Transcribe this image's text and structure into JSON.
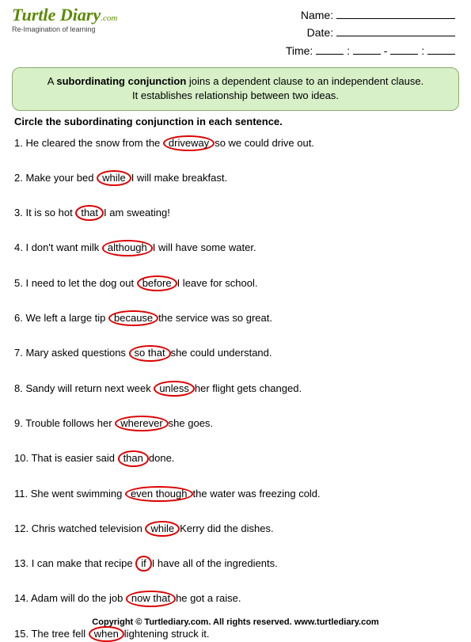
{
  "logo": {
    "main": "Turtle Diary",
    "sub": ".com",
    "tagline": "Re-Imagination of learning"
  },
  "fields": {
    "name": "Name:",
    "date": "Date:",
    "time": "Time:"
  },
  "instruction": {
    "line1a": "A ",
    "bold": "subordinating conjunction",
    "line1b": " joins a dependent clause to an independent clause.",
    "line2": "It establishes relationship between two ideas."
  },
  "directions": "Circle the subordinating conjunction in each sentence.",
  "sentences": [
    {
      "n": "1.",
      "pre": "He cleared the snow from the ",
      "circ": "driveway",
      "post": "so we could drive out."
    },
    {
      "n": "2.",
      "pre": "Make your bed ",
      "circ": "while",
      "post": "I will make breakfast."
    },
    {
      "n": "3.",
      "pre": "It is so hot ",
      "circ": "that",
      "post": "I am sweating!"
    },
    {
      "n": "4.",
      "pre": "I don't want milk ",
      "circ": "although",
      "post": "I will have some water."
    },
    {
      "n": "5.",
      "pre": "I need to let the dog out ",
      "circ": "before",
      "post": "I leave for school."
    },
    {
      "n": "6.",
      "pre": "We left a large tip ",
      "circ": "because",
      "post": "the service was so great."
    },
    {
      "n": "7.",
      "pre": "Mary asked questions ",
      "circ": "so that",
      "post": "she could understand."
    },
    {
      "n": "8.",
      "pre": "Sandy will return next week ",
      "circ": "unless",
      "post": "her flight gets changed."
    },
    {
      "n": "9.",
      "pre": "Trouble follows her ",
      "circ": "wherever",
      "post": "she goes."
    },
    {
      "n": "10.",
      "pre": "That is easier said ",
      "circ": "than",
      "post": "done."
    },
    {
      "n": "11.",
      "pre": "She went swimming ",
      "circ": "even though",
      "post": "the water was freezing cold."
    },
    {
      "n": "12.",
      "pre": "Chris watched television ",
      "circ": "while",
      "post": "Kerry did the dishes."
    },
    {
      "n": "13.",
      "pre": "I can make that recipe ",
      "circ": "if",
      "post": "I have all of the ingredients."
    },
    {
      "n": "14.",
      "pre": "Adam will do the job ",
      "circ": "now that",
      "post": "he got a raise."
    },
    {
      "n": "15.",
      "pre": "The tree fell ",
      "circ": "when",
      "post": "lightening struck it."
    }
  ],
  "footer": "Copyright © Turtlediary.com. All rights reserved.  www.turtlediary.com",
  "styles": {
    "circle_border_color": "#d00",
    "box_bg": "#d8f0c8",
    "box_border": "#8aaa6a",
    "logo_color": "#5a8a00"
  }
}
